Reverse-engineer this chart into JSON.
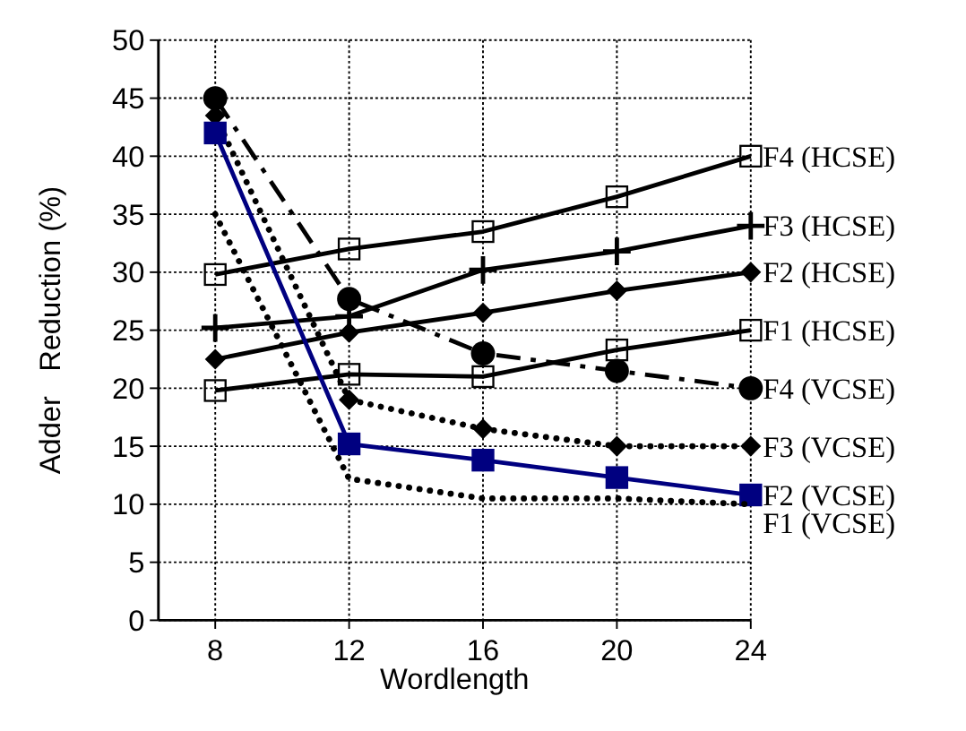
{
  "chart_data": {
    "type": "line",
    "xlabel": "Wordlength",
    "ylabel": "Adder   Reduction (%)",
    "categories": [
      "8",
      "12",
      "16",
      "20",
      "24"
    ],
    "ylim": [
      0,
      50
    ],
    "yticks": [
      0,
      5,
      10,
      15,
      20,
      25,
      30,
      35,
      40,
      45,
      50
    ],
    "grid": true,
    "series": [
      {
        "name": "F4 (HCSE)",
        "color": "#000000",
        "marker": "square",
        "line_style": "solid",
        "values": [
          29.8,
          32,
          33.5,
          36.5,
          40
        ]
      },
      {
        "name": "F3 (HCSE)",
        "color": "#000000",
        "marker": "cross",
        "line_style": "solid",
        "values": [
          25.2,
          26.2,
          30.2,
          31.8,
          34
        ]
      },
      {
        "name": "F2 (HCSE)",
        "color": "#000000",
        "marker": "diamond",
        "line_style": "solid",
        "values": [
          22.5,
          24.8,
          26.5,
          28.4,
          30
        ]
      },
      {
        "name": "F1 (HCSE)",
        "color": "#000000",
        "marker": "square",
        "line_style": "solid",
        "values": [
          19.8,
          21.2,
          21,
          23.3,
          25
        ]
      },
      {
        "name": "F4 (VCSE)",
        "color": "#000000",
        "marker": "circle",
        "line_style": "dashed",
        "values": [
          45,
          27.7,
          23,
          21.5,
          20
        ]
      },
      {
        "name": "F3 (VCSE)",
        "color": "#000000",
        "marker": "diamond",
        "line_style": "dotted",
        "values": [
          43.5,
          19,
          16.5,
          15,
          15
        ]
      },
      {
        "name": "F2 (VCSE)",
        "color": "#000080",
        "marker": "square",
        "line_style": "solid",
        "values": [
          42,
          15.2,
          13.8,
          12.3,
          10.8
        ]
      },
      {
        "name": "F1 (VCSE)",
        "color": "#000000",
        "marker": "none",
        "line_style": "dotted",
        "values": [
          35,
          12.2,
          10.5,
          10.5,
          10
        ]
      }
    ]
  }
}
